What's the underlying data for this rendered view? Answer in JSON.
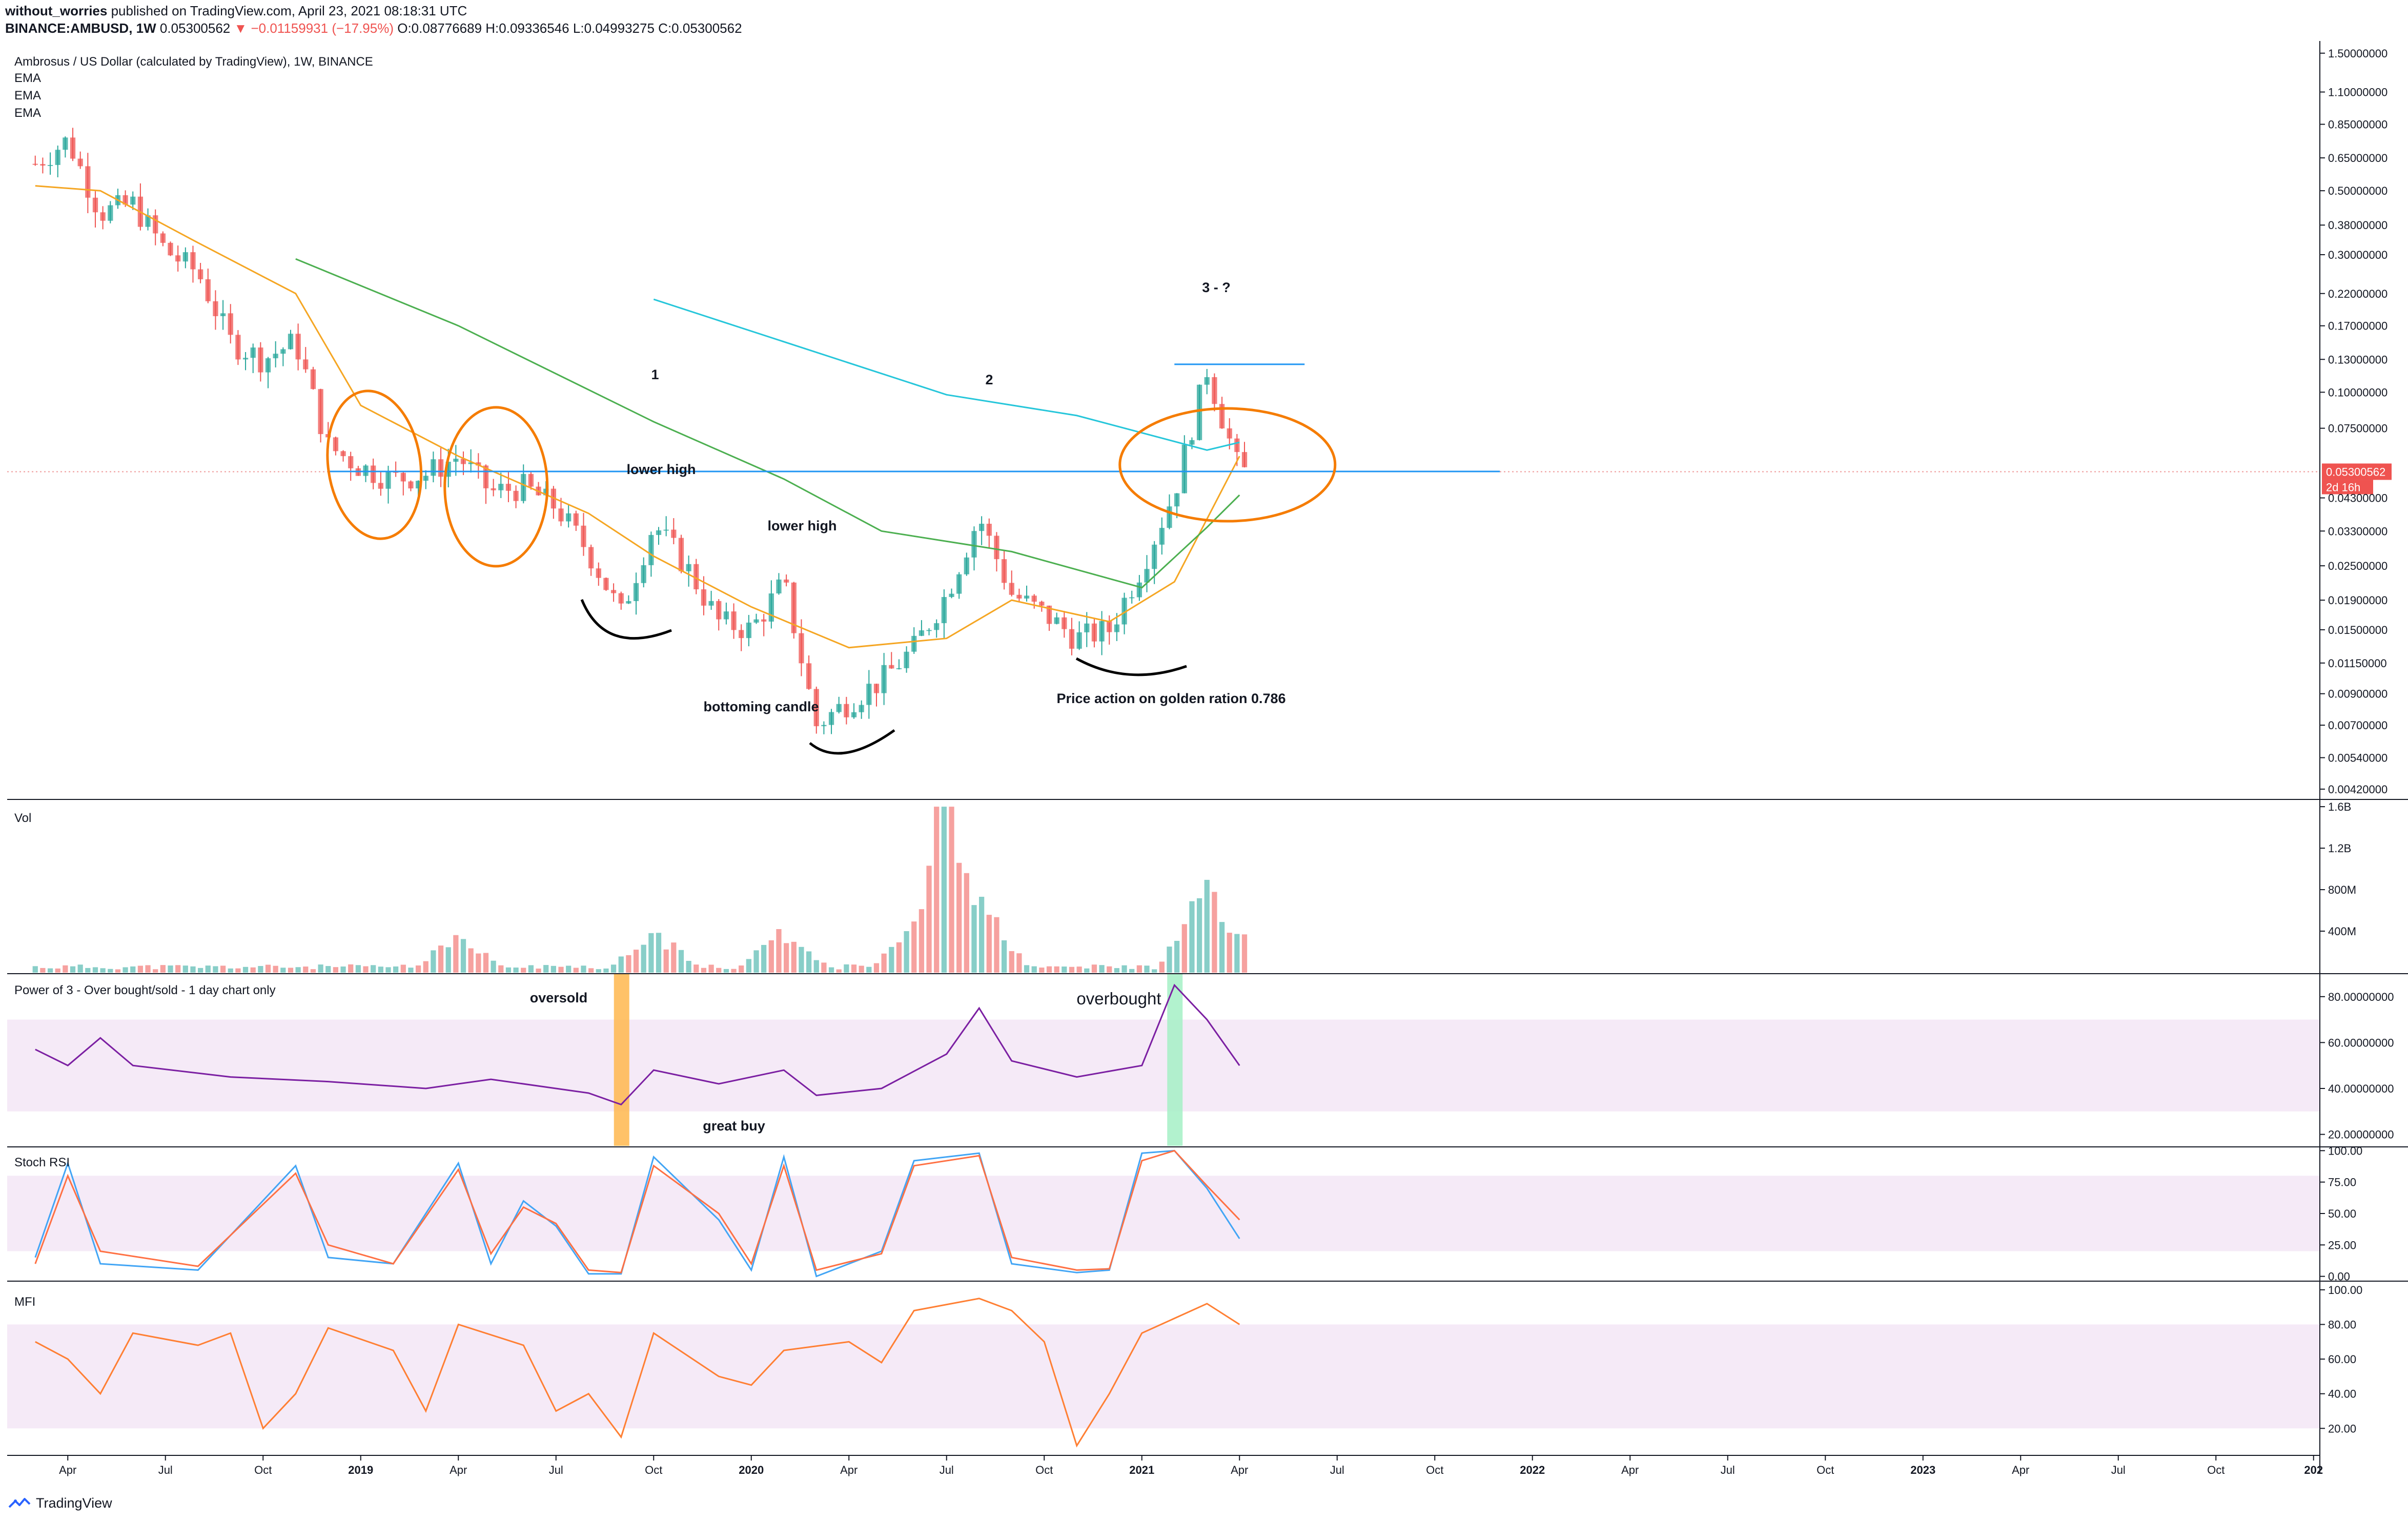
{
  "header": {
    "author": "without_worries",
    "published": "published on TradingView.com, April 23, 2021 08:18:31 UTC",
    "symbol": "BINANCE:AMBUSD, 1W",
    "price": "0.05300562",
    "change": "▼ −0.01159931 (−17.95%)",
    "ohlc_o": "O:0.08776689",
    "ohlc_h": "H:0.09336546",
    "ohlc_l": "L:0.04993275",
    "ohlc_c": "C:0.05300562"
  },
  "footer": {
    "brand": "TradingView",
    "logo_icon": "tradingview-logo-icon"
  },
  "colors": {
    "up": "#26a69a",
    "down": "#ef5350",
    "ema_fast": "#f5a623",
    "ema_mid": "#4caf50",
    "ema_slow": "#26c6da",
    "annotation": "#f57c00",
    "level": "#2196f3",
    "rsi": "#7b1fa2",
    "band": "#f3e5f5",
    "stoch_k": "#42a5f5",
    "stoch_d": "#ff7043",
    "mfi": "#ff7f33"
  },
  "chart_data": [
    {
      "type": "candlestick",
      "pane": "price",
      "title": "Ambrosus / US Dollar (calculated by TradingView), 1W, BINANCE",
      "indicators": [
        "EMA",
        "EMA",
        "EMA"
      ],
      "scale": "log",
      "ylim": [
        0.0039,
        1.6
      ],
      "y_ticks": [
        "1.50000000",
        "1.10000000",
        "0.85000000",
        "0.65000000",
        "0.50000000",
        "0.38000000",
        "0.30000000",
        "0.22000000",
        "0.17000000",
        "0.13000000",
        "0.10000000",
        "0.07500000",
        "0.05300562",
        "0.04300000",
        "0.03300000",
        "0.02500000",
        "0.01900000",
        "0.01500000",
        "0.01150000",
        "0.00900000",
        "0.00700000",
        "0.00540000",
        "0.00420000"
      ],
      "y_tick_values": [
        1.5,
        1.1,
        0.85,
        0.65,
        0.5,
        0.38,
        0.3,
        0.22,
        0.17,
        0.13,
        0.1,
        0.075,
        0.05300562,
        0.043,
        0.033,
        0.025,
        0.019,
        0.015,
        0.0115,
        0.009,
        0.007,
        0.0054,
        0.0042
      ],
      "last_price_label": "0.05300562",
      "countdown_label": "2d 16h",
      "x_ticks": [
        "Apr",
        "Jul",
        "Oct",
        "2019",
        "Apr",
        "Jul",
        "Oct",
        "2020",
        "Apr",
        "Jul",
        "Oct",
        "2021",
        "Apr",
        "Jul",
        "Oct",
        "2022",
        "Apr",
        "Jul",
        "Oct",
        "2023",
        "Apr",
        "Jul",
        "Oct",
        "202"
      ],
      "x_tick_dates": [
        "2018-04",
        "2018-07",
        "2018-10",
        "2019-01",
        "2019-04",
        "2019-07",
        "2019-10",
        "2020-01",
        "2020-04",
        "2020-07",
        "2020-10",
        "2021-01",
        "2021-04",
        "2021-07",
        "2021-10",
        "2022-01",
        "2022-04",
        "2022-07",
        "2022-10",
        "2023-01",
        "2023-04",
        "2023-07",
        "2023-10",
        "2024-01"
      ],
      "close_path": [
        {
          "x": "2018-03",
          "y": 0.62
        },
        {
          "x": "2018-04",
          "y": 0.75
        },
        {
          "x": "2018-05",
          "y": 0.42
        },
        {
          "x": "2018-06",
          "y": 0.45
        },
        {
          "x": "2018-07",
          "y": 0.31
        },
        {
          "x": "2018-08",
          "y": 0.26
        },
        {
          "x": "2018-09",
          "y": 0.15
        },
        {
          "x": "2018-10",
          "y": 0.13
        },
        {
          "x": "2018-11",
          "y": 0.15
        },
        {
          "x": "2018-12",
          "y": 0.065
        },
        {
          "x": "2019-01",
          "y": 0.055
        },
        {
          "x": "2019-02",
          "y": 0.05
        },
        {
          "x": "2019-03",
          "y": 0.052
        },
        {
          "x": "2019-04",
          "y": 0.06
        },
        {
          "x": "2019-05",
          "y": 0.045
        },
        {
          "x": "2019-06",
          "y": 0.047
        },
        {
          "x": "2019-07",
          "y": 0.04
        },
        {
          "x": "2019-08",
          "y": 0.028
        },
        {
          "x": "2019-09",
          "y": 0.017
        },
        {
          "x": "2019-10",
          "y": 0.035
        },
        {
          "x": "2019-11",
          "y": 0.025
        },
        {
          "x": "2019-12",
          "y": 0.016
        },
        {
          "x": "2020-01",
          "y": 0.015
        },
        {
          "x": "2020-02",
          "y": 0.022
        },
        {
          "x": "2020-03",
          "y": 0.007
        },
        {
          "x": "2020-04",
          "y": 0.0085
        },
        {
          "x": "2020-05",
          "y": 0.01
        },
        {
          "x": "2020-06",
          "y": 0.013
        },
        {
          "x": "2020-07",
          "y": 0.02
        },
        {
          "x": "2020-08",
          "y": 0.037
        },
        {
          "x": "2020-09",
          "y": 0.02
        },
        {
          "x": "2020-10",
          "y": 0.017
        },
        {
          "x": "2020-11",
          "y": 0.014
        },
        {
          "x": "2020-12",
          "y": 0.015
        },
        {
          "x": "2021-01",
          "y": 0.025
        },
        {
          "x": "2021-02",
          "y": 0.045
        },
        {
          "x": "2021-03",
          "y": 0.12
        },
        {
          "x": "2021-04",
          "y": 0.053
        }
      ],
      "series": [
        {
          "name": "EMA",
          "color": "#f5a623",
          "points": [
            {
              "x": "2018-03",
              "y": 0.52
            },
            {
              "x": "2018-05",
              "y": 0.5
            },
            {
              "x": "2018-08",
              "y": 0.33
            },
            {
              "x": "2018-11",
              "y": 0.22
            },
            {
              "x": "2019-01",
              "y": 0.09
            },
            {
              "x": "2019-04",
              "y": 0.06
            },
            {
              "x": "2019-08",
              "y": 0.038
            },
            {
              "x": "2019-10",
              "y": 0.027
            },
            {
              "x": "2020-01",
              "y": 0.018
            },
            {
              "x": "2020-04",
              "y": 0.013
            },
            {
              "x": "2020-07",
              "y": 0.014
            },
            {
              "x": "2020-09",
              "y": 0.019
            },
            {
              "x": "2020-12",
              "y": 0.016
            },
            {
              "x": "2021-02",
              "y": 0.022
            },
            {
              "x": "2021-04",
              "y": 0.06
            }
          ]
        },
        {
          "name": "EMA",
          "color": "#4caf50",
          "points": [
            {
              "x": "2018-11",
              "y": 0.29
            },
            {
              "x": "2019-04",
              "y": 0.17
            },
            {
              "x": "2019-10",
              "y": 0.079
            },
            {
              "x": "2020-02",
              "y": 0.05
            },
            {
              "x": "2020-05",
              "y": 0.033
            },
            {
              "x": "2020-09",
              "y": 0.028
            },
            {
              "x": "2021-01",
              "y": 0.021
            },
            {
              "x": "2021-03",
              "y": 0.034
            },
            {
              "x": "2021-04",
              "y": 0.044
            }
          ]
        },
        {
          "name": "EMA",
          "color": "#26c6da",
          "points": [
            {
              "x": "2019-10",
              "y": 0.21
            },
            {
              "x": "2020-07",
              "y": 0.098
            },
            {
              "x": "2020-11",
              "y": 0.083
            },
            {
              "x": "2021-03",
              "y": 0.063
            },
            {
              "x": "2021-04",
              "y": 0.067
            }
          ]
        }
      ],
      "horizontal_levels": [
        {
          "y": 0.0531,
          "from": "2018-12",
          "to": "2021-12",
          "color": "#2196f3"
        },
        {
          "y": 0.125,
          "from": "2021-02",
          "to": "2021-06",
          "color": "#2196f3"
        }
      ],
      "annotations": [
        "1",
        "2",
        "3 - ?",
        "lower high",
        "lower high",
        "bottoming candle",
        "Price action on golden ration 0.786"
      ]
    },
    {
      "type": "bar",
      "pane": "volume",
      "title": "Vol",
      "y_ticks": [
        "1.6B",
        "1.2B",
        "800M",
        "400M"
      ],
      "y_tick_values": [
        1.6,
        1.2,
        0.8,
        0.4
      ],
      "ylim": [
        0,
        1.65
      ],
      "unit": "B",
      "peaks": [
        {
          "x": "2019-04",
          "y": 0.42
        },
        {
          "x": "2019-10",
          "y": 0.48
        },
        {
          "x": "2020-02",
          "y": 0.47
        },
        {
          "x": "2020-06",
          "y": 0.48
        },
        {
          "x": "2020-07",
          "y": 1.6
        },
        {
          "x": "2020-08",
          "y": 0.85
        },
        {
          "x": "2021-03",
          "y": 1.0
        },
        {
          "x": "2021-04",
          "y": 0.45
        }
      ]
    },
    {
      "type": "line",
      "pane": "power3",
      "title": "Power of 3 - Over bought/sold - 1 day chart only",
      "y_ticks": [
        "80.00000000",
        "60.00000000",
        "40.00000000",
        "20.00000000"
      ],
      "y_tick_values": [
        80,
        60,
        40,
        20
      ],
      "ylim": [
        15,
        90
      ],
      "band": [
        30,
        70
      ],
      "points": [
        {
          "x": "2018-03",
          "y": 57
        },
        {
          "x": "2018-04",
          "y": 50
        },
        {
          "x": "2018-05",
          "y": 62
        },
        {
          "x": "2018-06",
          "y": 50
        },
        {
          "x": "2018-09",
          "y": 45
        },
        {
          "x": "2018-12",
          "y": 43
        },
        {
          "x": "2019-03",
          "y": 40
        },
        {
          "x": "2019-05",
          "y": 44
        },
        {
          "x": "2019-08",
          "y": 38
        },
        {
          "x": "2019-09",
          "y": 33
        },
        {
          "x": "2019-10",
          "y": 48
        },
        {
          "x": "2019-12",
          "y": 42
        },
        {
          "x": "2020-02",
          "y": 48
        },
        {
          "x": "2020-03",
          "y": 37
        },
        {
          "x": "2020-05",
          "y": 40
        },
        {
          "x": "2020-07",
          "y": 55
        },
        {
          "x": "2020-08",
          "y": 75
        },
        {
          "x": "2020-09",
          "y": 52
        },
        {
          "x": "2020-11",
          "y": 45
        },
        {
          "x": "2021-01",
          "y": 50
        },
        {
          "x": "2021-02",
          "y": 85
        },
        {
          "x": "2021-03",
          "y": 70
        },
        {
          "x": "2021-04",
          "y": 50
        }
      ],
      "markers": [
        {
          "x": "2019-09",
          "label": "oversold",
          "color": "#ffb74d"
        },
        {
          "x": "2021-02",
          "label": "overbought",
          "color": "#a5f0c5"
        }
      ],
      "annotations": [
        "oversold",
        "great buy",
        "overbought"
      ]
    },
    {
      "type": "line",
      "pane": "stoch",
      "title": "Stoch RSI",
      "y_ticks": [
        "100.00",
        "75.00",
        "50.00",
        "25.00",
        "0.00"
      ],
      "y_tick_values": [
        100,
        75,
        50,
        25,
        0
      ],
      "ylim": [
        -3,
        103
      ],
      "band": [
        20,
        80
      ],
      "series": [
        {
          "name": "K",
          "color": "#42a5f5",
          "points": [
            {
              "x": "2018-03",
              "y": 15
            },
            {
              "x": "2018-04",
              "y": 90
            },
            {
              "x": "2018-05",
              "y": 10
            },
            {
              "x": "2018-08",
              "y": 5
            },
            {
              "x": "2018-11",
              "y": 88
            },
            {
              "x": "2018-12",
              "y": 15
            },
            {
              "x": "2019-02",
              "y": 10
            },
            {
              "x": "2019-04",
              "y": 90
            },
            {
              "x": "2019-05",
              "y": 10
            },
            {
              "x": "2019-06",
              "y": 60
            },
            {
              "x": "2019-07",
              "y": 40
            },
            {
              "x": "2019-08",
              "y": 2
            },
            {
              "x": "2019-09",
              "y": 2
            },
            {
              "x": "2019-10",
              "y": 95
            },
            {
              "x": "2019-12",
              "y": 45
            },
            {
              "x": "2020-01",
              "y": 5
            },
            {
              "x": "2020-02",
              "y": 95
            },
            {
              "x": "2020-03",
              "y": 0
            },
            {
              "x": "2020-05",
              "y": 20
            },
            {
              "x": "2020-06",
              "y": 92
            },
            {
              "x": "2020-08",
              "y": 98
            },
            {
              "x": "2020-09",
              "y": 10
            },
            {
              "x": "2020-11",
              "y": 3
            },
            {
              "x": "2020-12",
              "y": 5
            },
            {
              "x": "2021-01",
              "y": 98
            },
            {
              "x": "2021-02",
              "y": 100
            },
            {
              "x": "2021-03",
              "y": 70
            },
            {
              "x": "2021-04",
              "y": 30
            }
          ]
        },
        {
          "name": "D",
          "color": "#ff7043",
          "points": [
            {
              "x": "2018-03",
              "y": 10
            },
            {
              "x": "2018-04",
              "y": 80
            },
            {
              "x": "2018-05",
              "y": 20
            },
            {
              "x": "2018-08",
              "y": 8
            },
            {
              "x": "2018-11",
              "y": 82
            },
            {
              "x": "2018-12",
              "y": 25
            },
            {
              "x": "2019-02",
              "y": 10
            },
            {
              "x": "2019-04",
              "y": 85
            },
            {
              "x": "2019-05",
              "y": 18
            },
            {
              "x": "2019-06",
              "y": 55
            },
            {
              "x": "2019-07",
              "y": 42
            },
            {
              "x": "2019-08",
              "y": 5
            },
            {
              "x": "2019-09",
              "y": 3
            },
            {
              "x": "2019-10",
              "y": 88
            },
            {
              "x": "2019-12",
              "y": 50
            },
            {
              "x": "2020-01",
              "y": 10
            },
            {
              "x": "2020-02",
              "y": 88
            },
            {
              "x": "2020-03",
              "y": 5
            },
            {
              "x": "2020-05",
              "y": 18
            },
            {
              "x": "2020-06",
              "y": 88
            },
            {
              "x": "2020-08",
              "y": 96
            },
            {
              "x": "2020-09",
              "y": 15
            },
            {
              "x": "2020-11",
              "y": 5
            },
            {
              "x": "2020-12",
              "y": 6
            },
            {
              "x": "2021-01",
              "y": 92
            },
            {
              "x": "2021-02",
              "y": 100
            },
            {
              "x": "2021-03",
              "y": 72
            },
            {
              "x": "2021-04",
              "y": 45
            }
          ]
        }
      ]
    },
    {
      "type": "line",
      "pane": "mfi",
      "title": "MFI",
      "y_ticks": [
        "100.00",
        "80.00",
        "60.00",
        "40.00",
        "20.00"
      ],
      "y_tick_values": [
        100,
        80,
        60,
        40,
        20
      ],
      "ylim": [
        5,
        105
      ],
      "band": [
        20,
        80
      ],
      "points": [
        {
          "x": "2018-03",
          "y": 70
        },
        {
          "x": "2018-04",
          "y": 60
        },
        {
          "x": "2018-05",
          "y": 40
        },
        {
          "x": "2018-06",
          "y": 75
        },
        {
          "x": "2018-08",
          "y": 68
        },
        {
          "x": "2018-09",
          "y": 75
        },
        {
          "x": "2018-10",
          "y": 20
        },
        {
          "x": "2018-11",
          "y": 40
        },
        {
          "x": "2018-12",
          "y": 78
        },
        {
          "x": "2019-02",
          "y": 65
        },
        {
          "x": "2019-03",
          "y": 30
        },
        {
          "x": "2019-04",
          "y": 80
        },
        {
          "x": "2019-06",
          "y": 68
        },
        {
          "x": "2019-07",
          "y": 30
        },
        {
          "x": "2019-08",
          "y": 40
        },
        {
          "x": "2019-09",
          "y": 15
        },
        {
          "x": "2019-10",
          "y": 75
        },
        {
          "x": "2019-12",
          "y": 50
        },
        {
          "x": "2020-01",
          "y": 45
        },
        {
          "x": "2020-02",
          "y": 65
        },
        {
          "x": "2020-04",
          "y": 70
        },
        {
          "x": "2020-05",
          "y": 58
        },
        {
          "x": "2020-06",
          "y": 88
        },
        {
          "x": "2020-08",
          "y": 95
        },
        {
          "x": "2020-09",
          "y": 88
        },
        {
          "x": "2020-10",
          "y": 70
        },
        {
          "x": "2020-11",
          "y": 10
        },
        {
          "x": "2020-12",
          "y": 40
        },
        {
          "x": "2021-01",
          "y": 75
        },
        {
          "x": "2021-03",
          "y": 92
        },
        {
          "x": "2021-04",
          "y": 80
        }
      ]
    }
  ]
}
